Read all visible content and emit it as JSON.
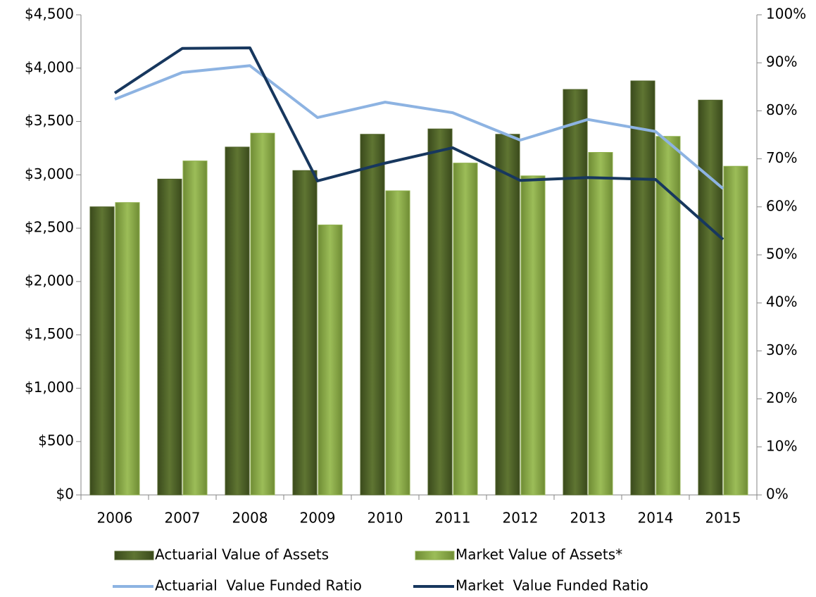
{
  "chart_data": {
    "type": "bar-line",
    "categories": [
      "2006",
      "2007",
      "2008",
      "2009",
      "2010",
      "2011",
      "2012",
      "2013",
      "2014",
      "2015"
    ],
    "series": [
      {
        "name": "Actuarial Value of Assets",
        "type": "bar",
        "color": "#4f6228",
        "values": [
          2700,
          2960,
          3260,
          3040,
          3380,
          3430,
          3380,
          3800,
          3880,
          3700
        ]
      },
      {
        "name": "Market Value of Assets*",
        "type": "bar",
        "color": "#8fb04c",
        "values": [
          2740,
          3130,
          3390,
          2530,
          2850,
          3110,
          2990,
          3210,
          3360,
          3080
        ]
      },
      {
        "name": "Actuarial  Value Funded Ratio",
        "type": "line",
        "axis": "y2",
        "color": "#8db3e2",
        "values": [
          82.4,
          88.0,
          89.4,
          78.6,
          81.8,
          79.6,
          73.9,
          78.2,
          75.7,
          63.8
        ]
      },
      {
        "name": "Market  Value Funded Ratio",
        "type": "line",
        "axis": "y2",
        "color": "#17375e",
        "values": [
          83.7,
          93.0,
          93.1,
          65.4,
          69.1,
          72.3,
          65.5,
          66.1,
          65.7,
          53.2
        ]
      }
    ],
    "ylim": [
      0,
      4500
    ],
    "yticks": [
      {
        "value": 0,
        "label": "$0"
      },
      {
        "value": 500,
        "label": "$500"
      },
      {
        "value": 1000,
        "label": "$1,000"
      },
      {
        "value": 1500,
        "label": "$1,500"
      },
      {
        "value": 2000,
        "label": "$2,000"
      },
      {
        "value": 2500,
        "label": "$2,500"
      },
      {
        "value": 3000,
        "label": "$3,000"
      },
      {
        "value": 3500,
        "label": "$3,500"
      },
      {
        "value": 4000,
        "label": "$4,000"
      },
      {
        "value": 4500,
        "label": "$4,500"
      }
    ],
    "y2lim": [
      0,
      100
    ],
    "y2ticks": [
      {
        "value": 0,
        "label": "0%"
      },
      {
        "value": 10,
        "label": "10%"
      },
      {
        "value": 20,
        "label": "20%"
      },
      {
        "value": 30,
        "label": "30%"
      },
      {
        "value": 40,
        "label": "40%"
      },
      {
        "value": 50,
        "label": "50%"
      },
      {
        "value": 60,
        "label": "60%"
      },
      {
        "value": 70,
        "label": "70%"
      },
      {
        "value": 80,
        "label": "80%"
      },
      {
        "value": 90,
        "label": "90%"
      },
      {
        "value": 100,
        "label": "100%"
      }
    ],
    "legend": "bottom",
    "grid": false
  }
}
